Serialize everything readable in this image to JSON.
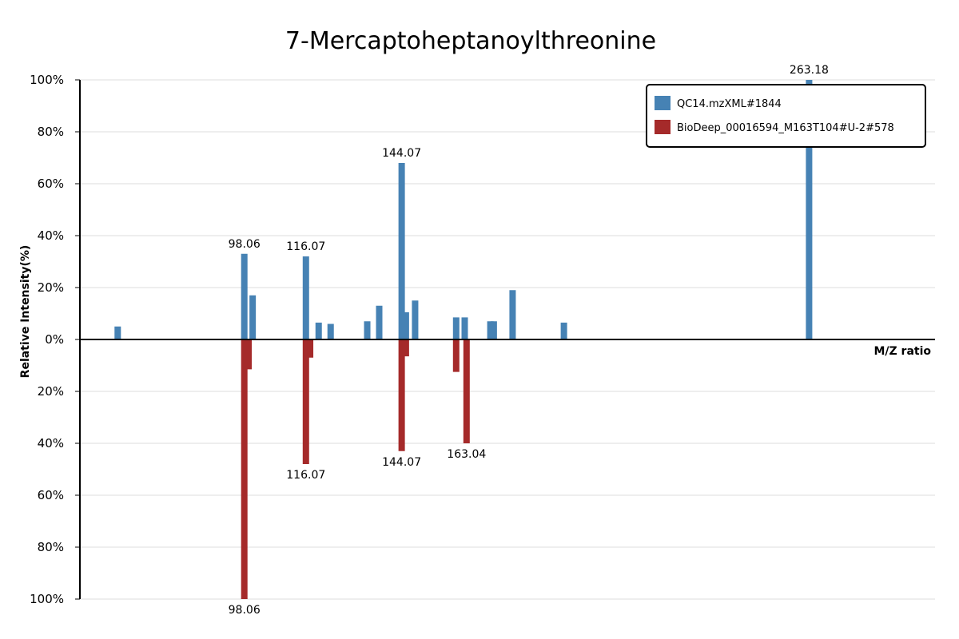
{
  "chart_data": {
    "type": "bar",
    "title": "7-Mercaptoheptanoylthreonine",
    "xlabel": "M/Z ratio",
    "ylabel": "Relative Intensity(%)",
    "ylim": [
      -100,
      100
    ],
    "xlim": [
      50,
      300
    ],
    "y_tick_labels": [
      "100%",
      "80%",
      "60%",
      "40%",
      "20%",
      "0%",
      "20%",
      "40%",
      "60%",
      "80%",
      "100%"
    ],
    "y_tick_values": [
      100,
      80,
      60,
      40,
      20,
      0,
      -20,
      -40,
      -60,
      -80,
      -100
    ],
    "grid": true,
    "legend_position": "top-right",
    "series": [
      {
        "name": "QC14.mzXML#1844",
        "color": "#4682b4",
        "direction": "up",
        "points": [
          {
            "mz": 61.05,
            "intensity": 5,
            "label": ""
          },
          {
            "mz": 98.06,
            "intensity": 33,
            "label": "98.06"
          },
          {
            "mz": 100.5,
            "intensity": 17,
            "label": ""
          },
          {
            "mz": 116.07,
            "intensity": 32,
            "label": "116.07"
          },
          {
            "mz": 119.8,
            "intensity": 6.5,
            "label": ""
          },
          {
            "mz": 123.3,
            "intensity": 6,
            "label": ""
          },
          {
            "mz": 134.0,
            "intensity": 7,
            "label": ""
          },
          {
            "mz": 137.5,
            "intensity": 13,
            "label": ""
          },
          {
            "mz": 144.07,
            "intensity": 68,
            "label": "144.07"
          },
          {
            "mz": 145.3,
            "intensity": 10.5,
            "label": ""
          },
          {
            "mz": 148.0,
            "intensity": 15,
            "label": ""
          },
          {
            "mz": 160.0,
            "intensity": 8.5,
            "label": ""
          },
          {
            "mz": 162.5,
            "intensity": 8.5,
            "label": ""
          },
          {
            "mz": 170.0,
            "intensity": 7,
            "label": ""
          },
          {
            "mz": 171.0,
            "intensity": 7,
            "label": ""
          },
          {
            "mz": 176.5,
            "intensity": 19,
            "label": ""
          },
          {
            "mz": 191.5,
            "intensity": 6.5,
            "label": ""
          },
          {
            "mz": 263.18,
            "intensity": 100,
            "label": "263.18"
          }
        ]
      },
      {
        "name": "BioDeep_00016594_M163T104#U-2#578",
        "color": "#a52a2a",
        "direction": "down",
        "points": [
          {
            "mz": 98.06,
            "intensity": 100,
            "label": "98.06"
          },
          {
            "mz": 99.3,
            "intensity": 11.5,
            "label": ""
          },
          {
            "mz": 116.07,
            "intensity": 48,
            "label": "116.07"
          },
          {
            "mz": 117.3,
            "intensity": 7,
            "label": ""
          },
          {
            "mz": 144.07,
            "intensity": 43,
            "label": "144.07"
          },
          {
            "mz": 145.3,
            "intensity": 6.5,
            "label": ""
          },
          {
            "mz": 160.0,
            "intensity": 12.5,
            "label": ""
          },
          {
            "mz": 163.04,
            "intensity": 40,
            "label": "163.04"
          }
        ]
      }
    ]
  }
}
